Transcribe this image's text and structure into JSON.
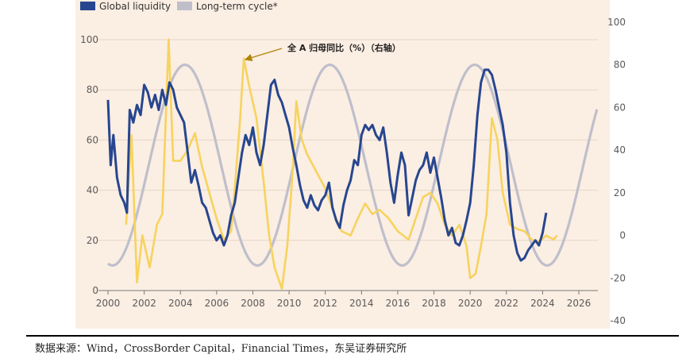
{
  "chart_data": {
    "type": "line",
    "title": "",
    "xlabel": "",
    "ylabel": "",
    "legend": {
      "placement": "top-left"
    },
    "grid": true,
    "x_ticks": [
      2000,
      2002,
      2004,
      2006,
      2008,
      2010,
      2012,
      2014,
      2016,
      2018,
      2020,
      2022,
      2024,
      2026
    ],
    "y_left": {
      "ylim": [
        0,
        100
      ],
      "ticks": [
        0,
        20,
        40,
        60,
        80,
        100
      ]
    },
    "y_right": {
      "ylim": [
        -40,
        100
      ],
      "ticks": [
        -40,
        -20,
        0,
        20,
        40,
        60,
        80,
        100
      ]
    },
    "series": [
      {
        "name": "Global liquidity",
        "axis": "left",
        "color": "#27468f",
        "points": [
          [
            2000.0,
            76
          ],
          [
            2000.15,
            50
          ],
          [
            2000.3,
            62
          ],
          [
            2000.5,
            45
          ],
          [
            2000.7,
            38
          ],
          [
            2000.9,
            35
          ],
          [
            2001.05,
            31
          ],
          [
            2001.2,
            72
          ],
          [
            2001.4,
            67
          ],
          [
            2001.6,
            74
          ],
          [
            2001.8,
            70
          ],
          [
            2002.0,
            82
          ],
          [
            2002.2,
            79
          ],
          [
            2002.4,
            73
          ],
          [
            2002.6,
            78
          ],
          [
            2002.8,
            72
          ],
          [
            2003.0,
            80
          ],
          [
            2003.2,
            74
          ],
          [
            2003.4,
            83
          ],
          [
            2003.6,
            80
          ],
          [
            2003.8,
            73
          ],
          [
            2004.0,
            70
          ],
          [
            2004.2,
            67
          ],
          [
            2004.4,
            55
          ],
          [
            2004.6,
            43
          ],
          [
            2004.8,
            48
          ],
          [
            2005.0,
            42
          ],
          [
            2005.2,
            35
          ],
          [
            2005.4,
            33
          ],
          [
            2005.6,
            28
          ],
          [
            2005.8,
            23
          ],
          [
            2006.0,
            20
          ],
          [
            2006.2,
            22
          ],
          [
            2006.4,
            18
          ],
          [
            2006.6,
            22
          ],
          [
            2006.8,
            30
          ],
          [
            2007.0,
            35
          ],
          [
            2007.2,
            45
          ],
          [
            2007.4,
            55
          ],
          [
            2007.6,
            62
          ],
          [
            2007.8,
            58
          ],
          [
            2008.0,
            65
          ],
          [
            2008.2,
            55
          ],
          [
            2008.4,
            50
          ],
          [
            2008.6,
            58
          ],
          [
            2008.8,
            70
          ],
          [
            2009.0,
            82
          ],
          [
            2009.2,
            84
          ],
          [
            2009.4,
            78
          ],
          [
            2009.6,
            75
          ],
          [
            2009.8,
            70
          ],
          [
            2010.0,
            65
          ],
          [
            2010.2,
            57
          ],
          [
            2010.4,
            50
          ],
          [
            2010.6,
            42
          ],
          [
            2010.8,
            36
          ],
          [
            2011.0,
            33
          ],
          [
            2011.2,
            38
          ],
          [
            2011.4,
            34
          ],
          [
            2011.6,
            32
          ],
          [
            2011.8,
            36
          ],
          [
            2012.0,
            38
          ],
          [
            2012.2,
            43
          ],
          [
            2012.4,
            33
          ],
          [
            2012.6,
            28
          ],
          [
            2012.8,
            25
          ],
          [
            2013.0,
            34
          ],
          [
            2013.2,
            40
          ],
          [
            2013.4,
            44
          ],
          [
            2013.6,
            52
          ],
          [
            2013.8,
            50
          ],
          [
            2014.0,
            62
          ],
          [
            2014.2,
            66
          ],
          [
            2014.4,
            64
          ],
          [
            2014.6,
            66
          ],
          [
            2014.8,
            62
          ],
          [
            2015.0,
            60
          ],
          [
            2015.2,
            65
          ],
          [
            2015.4,
            55
          ],
          [
            2015.6,
            43
          ],
          [
            2015.8,
            35
          ],
          [
            2016.0,
            46
          ],
          [
            2016.2,
            55
          ],
          [
            2016.4,
            50
          ],
          [
            2016.6,
            30
          ],
          [
            2016.8,
            37
          ],
          [
            2017.0,
            44
          ],
          [
            2017.2,
            48
          ],
          [
            2017.4,
            50
          ],
          [
            2017.6,
            55
          ],
          [
            2017.8,
            47
          ],
          [
            2018.0,
            53
          ],
          [
            2018.2,
            45
          ],
          [
            2018.4,
            37
          ],
          [
            2018.6,
            28
          ],
          [
            2018.8,
            22
          ],
          [
            2019.0,
            25
          ],
          [
            2019.2,
            19
          ],
          [
            2019.4,
            18
          ],
          [
            2019.6,
            22
          ],
          [
            2019.8,
            28
          ],
          [
            2020.0,
            35
          ],
          [
            2020.2,
            50
          ],
          [
            2020.4,
            70
          ],
          [
            2020.6,
            83
          ],
          [
            2020.8,
            88
          ],
          [
            2021.0,
            88
          ],
          [
            2021.2,
            86
          ],
          [
            2021.4,
            80
          ],
          [
            2021.6,
            73
          ],
          [
            2021.8,
            66
          ],
          [
            2022.0,
            55
          ],
          [
            2022.2,
            35
          ],
          [
            2022.4,
            22
          ],
          [
            2022.6,
            15
          ],
          [
            2022.8,
            12
          ],
          [
            2023.0,
            13
          ],
          [
            2023.2,
            16
          ],
          [
            2023.4,
            18
          ],
          [
            2023.6,
            20
          ],
          [
            2023.8,
            18
          ],
          [
            2024.0,
            23
          ],
          [
            2024.2,
            31
          ]
        ]
      },
      {
        "name": "Long-term cycle*",
        "axis": "left",
        "color": "#bfbfcb",
        "function": {
          "center": 50,
          "amplitude": 40,
          "period": 8,
          "peak_at": 2004.25
        },
        "x_range": [
          2000,
          2027
        ]
      },
      {
        "name": "全 A 归母同比（%）（右轴）",
        "axis": "right",
        "color": "#f7d35e",
        "points": [
          [
            2001.0,
            5
          ],
          [
            2001.3,
            47
          ],
          [
            2001.6,
            -22
          ],
          [
            2001.9,
            0
          ],
          [
            2002.3,
            -15
          ],
          [
            2002.7,
            5
          ],
          [
            2003.0,
            10
          ],
          [
            2003.35,
            92
          ],
          [
            2003.6,
            35
          ],
          [
            2004.0,
            35
          ],
          [
            2004.4,
            40
          ],
          [
            2004.8,
            48
          ],
          [
            2005.2,
            32
          ],
          [
            2005.6,
            20
          ],
          [
            2006.0,
            8
          ],
          [
            2006.4,
            -2
          ],
          [
            2006.8,
            2
          ],
          [
            2007.0,
            22
          ],
          [
            2007.3,
            55
          ],
          [
            2007.5,
            83
          ],
          [
            2007.8,
            70
          ],
          [
            2008.2,
            55
          ],
          [
            2008.6,
            25
          ],
          [
            2008.9,
            0
          ],
          [
            2009.2,
            -15
          ],
          [
            2009.6,
            -25
          ],
          [
            2009.9,
            -5
          ],
          [
            2010.2,
            30
          ],
          [
            2010.4,
            63
          ],
          [
            2010.7,
            45
          ],
          [
            2011.0,
            38
          ],
          [
            2011.5,
            30
          ],
          [
            2012.0,
            22
          ],
          [
            2012.5,
            10
          ],
          [
            2012.9,
            2
          ],
          [
            2013.4,
            0
          ],
          [
            2013.8,
            8
          ],
          [
            2014.2,
            15
          ],
          [
            2014.6,
            10
          ],
          [
            2015.0,
            12
          ],
          [
            2015.5,
            8
          ],
          [
            2016.0,
            2
          ],
          [
            2016.6,
            -2
          ],
          [
            2017.0,
            8
          ],
          [
            2017.4,
            18
          ],
          [
            2017.8,
            20
          ],
          [
            2018.2,
            15
          ],
          [
            2018.6,
            5
          ],
          [
            2019.0,
            0
          ],
          [
            2019.4,
            5
          ],
          [
            2019.8,
            -5
          ],
          [
            2020.0,
            -20
          ],
          [
            2020.3,
            -18
          ],
          [
            2020.6,
            -5
          ],
          [
            2020.9,
            10
          ],
          [
            2021.2,
            55
          ],
          [
            2021.5,
            45
          ],
          [
            2021.8,
            20
          ],
          [
            2022.2,
            5
          ],
          [
            2022.6,
            3
          ],
          [
            2023.0,
            2
          ],
          [
            2023.4,
            -2
          ],
          [
            2023.8,
            -3
          ],
          [
            2024.2,
            0
          ],
          [
            2024.6,
            -2
          ],
          [
            2024.8,
            0
          ]
        ]
      }
    ],
    "annotations": [
      {
        "text": "全 A 归母同比（%）（右轴）",
        "arrow_to": [
          2007.4,
          82
        ],
        "axis": "right"
      }
    ]
  },
  "legend_items": [
    "Global liquidity",
    "Long-term cycle*"
  ],
  "source_note": "数据来源：Wind，CrossBorder Capital，Financial Times，东吴证券研究所"
}
